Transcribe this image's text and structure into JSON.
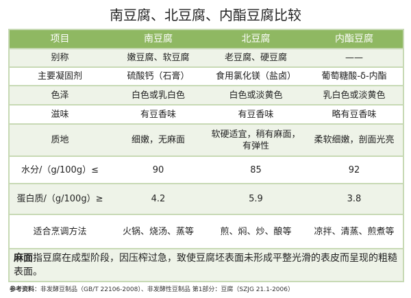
{
  "title": "南豆腐、北豆腐、内酯豆腐比较",
  "headers": [
    "项目",
    "南豆腐",
    "北豆腐",
    "内酯豆腐"
  ],
  "rows": [
    [
      "别称",
      "嫩豆腐、软豆腐",
      "老豆腐、硬豆腐",
      "——"
    ],
    [
      "主要凝固剂",
      "硫酸钙（石膏）",
      "食用氯化镁（盐卤）",
      "葡萄糖酸-δ-内酯"
    ],
    [
      "色泽",
      "白色或乳白色",
      "白色或淡黄色",
      "乳白色或淡黄色"
    ],
    [
      "滋味",
      "有豆香味",
      "有豆香味",
      "略有豆香味"
    ],
    [
      "质地",
      "细嫩，无麻面",
      "软硬适宜，稍有麻面，有弹性",
      "柔软细嫩，剖面光亮"
    ],
    [
      "水分/（g/100g）≤",
      "90",
      "85",
      "92"
    ],
    [
      "蛋白质/（g/100g）≥",
      "4.2",
      "5.9",
      "3.8"
    ],
    [
      "适合烹调方法",
      "火锅、烧汤、蒸等",
      "煎、焖、炒、酿等",
      "凉拌、清蒸、煎煮等"
    ]
  ],
  "note": {
    "term": "麻面",
    "text": "指豆腐在成型阶段，因压榨过急，致使豆腐坯表面未形成平整光滑的表皮而呈现的粗糙表面。"
  },
  "footer": {
    "label": "参考资料",
    "text": "：非发酵豆制品（GB/T 22106-2008）、非发酵性豆制品 第1部分：豆腐（SZJG 21.1-2006）"
  }
}
